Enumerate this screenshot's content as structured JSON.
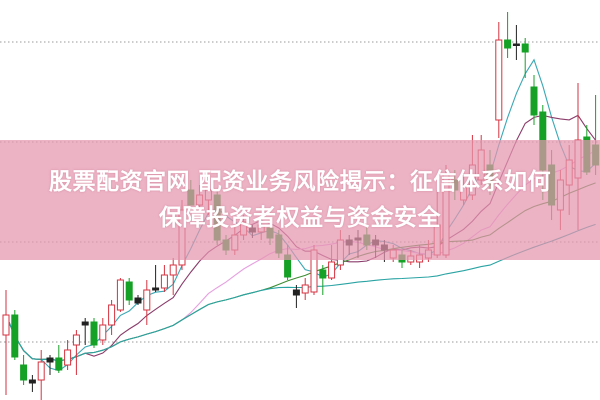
{
  "title": {
    "line1": "股票配资官网 配资业务风险揭示：征信体系如何",
    "line2": "保障投资者权益与资金安全"
  },
  "colors": {
    "up": "#d5323f",
    "down": "#15a125",
    "doji": "#222222",
    "banner": "#e596af",
    "grid": "#999999",
    "ma5": "#3aa8b4",
    "ma10": "#8a3c6a",
    "ma20": "#e6a0e0",
    "ma30": "#3c8c32",
    "ma60": "#2aa3a3"
  },
  "chart_data": {
    "type": "candlestick",
    "title": "",
    "xlabel": "",
    "ylabel": "",
    "ylim": [
      0,
      400
    ],
    "grid": true,
    "grid_lines": [
      58,
      158,
      258,
      358
    ],
    "moving_averages": [
      5,
      10,
      20,
      30,
      60
    ],
    "candles": [
      [
        65,
        85,
        110,
        5
      ],
      [
        85,
        43,
        90,
        40
      ],
      [
        35,
        20,
        45,
        15
      ],
      [
        20,
        17,
        25,
        8
      ],
      [
        20,
        38,
        50,
        0
      ],
      [
        38,
        42,
        45,
        25
      ],
      [
        42,
        30,
        55,
        27
      ],
      [
        35,
        50,
        60,
        30
      ],
      [
        55,
        65,
        70,
        25
      ],
      [
        75,
        78,
        82,
        55
      ],
      [
        78,
        55,
        82,
        52
      ],
      [
        60,
        75,
        82,
        55
      ],
      [
        75,
        95,
        100,
        65
      ],
      [
        90,
        120,
        122,
        88
      ],
      [
        118,
        100,
        122,
        95
      ],
      [
        102,
        97,
        105,
        95
      ],
      [
        90,
        110,
        120,
        75
      ],
      [
        110,
        112,
        135,
        108
      ],
      [
        112,
        125,
        135,
        108
      ],
      [
        125,
        135,
        142,
        105
      ],
      [
        135,
        190,
        200,
        130
      ],
      [
        210,
        195,
        220,
        195
      ],
      [
        195,
        205,
        215,
        190
      ],
      [
        200,
        210,
        215,
        185
      ],
      [
        205,
        160,
        210,
        155
      ],
      [
        160,
        150,
        165,
        145
      ],
      [
        150,
        165,
        175,
        145
      ],
      [
        165,
        178,
        185,
        160
      ],
      [
        172,
        168,
        175,
        162
      ],
      [
        168,
        175,
        185,
        160
      ],
      [
        172,
        162,
        180,
        155
      ],
      [
        165,
        147,
        170,
        142
      ],
      [
        145,
        123,
        155,
        120
      ],
      [
        110,
        105,
        115,
        92
      ],
      [
        107,
        115,
        122,
        100
      ],
      [
        108,
        150,
        155,
        105
      ],
      [
        130,
        122,
        135,
        105
      ],
      [
        122,
        138,
        155,
        120
      ],
      [
        135,
        160,
        170,
        130
      ],
      [
        155,
        160,
        165,
        145
      ],
      [
        160,
        162,
        170,
        142
      ],
      [
        165,
        155,
        175,
        150
      ],
      [
        155,
        160,
        165,
        142
      ],
      [
        150,
        155,
        160,
        138
      ],
      [
        142,
        150,
        155,
        138
      ],
      [
        145,
        138,
        150,
        132
      ],
      [
        138,
        144,
        150,
        135
      ],
      [
        138,
        145,
        155,
        132
      ],
      [
        142,
        150,
        160,
        138
      ],
      [
        145,
        175,
        210,
        142
      ],
      [
        145,
        225,
        235,
        142
      ],
      [
        220,
        210,
        230,
        200
      ],
      [
        200,
        215,
        230,
        195
      ],
      [
        205,
        235,
        265,
        200
      ],
      [
        220,
        250,
        265,
        215
      ],
      [
        235,
        215,
        250,
        205
      ],
      [
        280,
        360,
        378,
        262
      ],
      [
        360,
        352,
        388,
        342
      ],
      [
        355,
        356,
        375,
        340
      ],
      [
        356,
        348,
        362,
        322
      ],
      [
        313,
        285,
        325,
        275
      ],
      [
        288,
        230,
        295,
        200
      ],
      [
        235,
        195,
        250,
        180
      ],
      [
        190,
        220,
        230,
        170
      ],
      [
        215,
        240,
        255,
        185
      ],
      [
        222,
        260,
        317,
        170
      ],
      [
        263,
        228,
        275,
        225
      ],
      [
        255,
        235,
        305,
        225
      ]
    ],
    "candle_fields": [
      "open",
      "close",
      "high",
      "low"
    ]
  }
}
